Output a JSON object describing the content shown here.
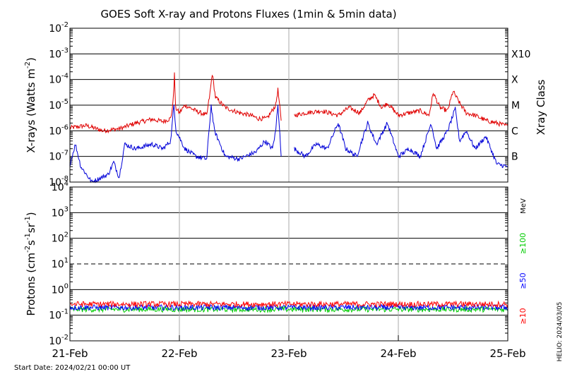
{
  "title": "GOES Soft X-ray and Protons Fluxes   (1min & 5min data)",
  "start_date": "Start Date: 2024/02/21 00:00 UT",
  "side_stamp": "HELIO: 2024/03/05",
  "colors": {
    "xray_long": "#e00000",
    "xray_short": "#0000d8",
    "p10": "#ff0000",
    "p50": "#0000ff",
    "p100": "#00cc00",
    "grid": "#000000",
    "day_line": "#aaaaaa"
  },
  "chart_data": [
    {
      "type": "line",
      "title": "",
      "ylabel_main": "X-rays (Watts m",
      "ylabel_sup": "-2",
      "ylabel_close": ")",
      "yscale": "log",
      "ylim_exp": [
        -8,
        -2
      ],
      "ytick_exps": [
        -8,
        -7,
        -6,
        -5,
        -4,
        -3,
        -2
      ],
      "x_ticks": [
        "21-Feb",
        "22-Feb",
        "23-Feb",
        "24-Feb",
        "25-Feb"
      ],
      "xlim_days": [
        0,
        4
      ],
      "class_axis_label": "Xray Class",
      "class_labels": [
        {
          "label": "B",
          "exp": -7
        },
        {
          "label": "C",
          "exp": -6
        },
        {
          "label": "M",
          "exp": -5
        },
        {
          "label": "X",
          "exp": -4
        },
        {
          "label": "X10",
          "exp": -3
        }
      ],
      "series": [
        {
          "color_key": "xray_long",
          "points": [
            [
              0,
              1.3e-06
            ],
            [
              0.15,
              1.6e-06
            ],
            [
              0.3,
              1e-06
            ],
            [
              0.45,
              1.2e-06
            ],
            [
              0.5,
              1.4e-06
            ],
            [
              0.6,
              2e-06
            ],
            [
              0.75,
              2.8e-06
            ],
            [
              0.85,
              2.3e-06
            ],
            [
              0.92,
              3e-06
            ],
            [
              0.94,
              1e-05
            ],
            [
              0.955,
              0.00016
            ],
            [
              0.965,
              8e-06
            ],
            [
              1.0,
              5e-06
            ],
            [
              1.05,
              1e-05
            ],
            [
              1.15,
              6e-06
            ],
            [
              1.25,
              4e-06
            ],
            [
              1.28,
              3e-05
            ],
            [
              1.3,
              0.00017
            ],
            [
              1.33,
              2e-05
            ],
            [
              1.42,
              8e-06
            ],
            [
              1.55,
              5e-06
            ],
            [
              1.65,
              4e-06
            ],
            [
              1.72,
              3e-06
            ],
            [
              1.8,
              3e-06
            ],
            [
              1.88,
              1e-05
            ],
            [
              1.9,
              4e-05
            ],
            [
              1.93,
              2.5e-06
            ]
          ],
          "gap_after": 1.93,
          "points2": [
            [
              2.05,
              4e-06
            ],
            [
              2.15,
              5e-06
            ],
            [
              2.3,
              6e-06
            ],
            [
              2.45,
              4e-06
            ],
            [
              2.55,
              8e-06
            ],
            [
              2.65,
              5e-06
            ],
            [
              2.72,
              1.5e-05
            ],
            [
              2.78,
              2.5e-05
            ],
            [
              2.85,
              8e-06
            ],
            [
              2.9,
              1.2e-05
            ],
            [
              3.0,
              4e-06
            ],
            [
              3.1,
              5e-06
            ],
            [
              3.2,
              6e-06
            ],
            [
              3.28,
              4e-06
            ],
            [
              3.32,
              3e-05
            ],
            [
              3.38,
              8e-06
            ],
            [
              3.45,
              6e-06
            ],
            [
              3.5,
              3.5e-05
            ],
            [
              3.56,
              1.2e-05
            ],
            [
              3.62,
              5e-06
            ],
            [
              3.7,
              4e-06
            ],
            [
              3.8,
              2.5e-06
            ],
            [
              3.9,
              2e-06
            ],
            [
              4.0,
              1.5e-06
            ]
          ]
        },
        {
          "color_key": "xray_short",
          "points": [
            [
              0,
              5e-08
            ],
            [
              0.05,
              3e-07
            ],
            [
              0.1,
              4e-08
            ],
            [
              0.2,
              1e-08
            ],
            [
              0.35,
              2e-08
            ],
            [
              0.4,
              6e-08
            ],
            [
              0.45,
              1.5e-08
            ],
            [
              0.5,
              3e-07
            ],
            [
              0.6,
              2e-07
            ],
            [
              0.75,
              3e-07
            ],
            [
              0.85,
              2e-07
            ],
            [
              0.92,
              4e-07
            ],
            [
              0.95,
              1e-05
            ],
            [
              0.97,
              1e-06
            ],
            [
              1.05,
              2e-07
            ],
            [
              1.15,
              1e-07
            ],
            [
              1.25,
              8e-08
            ],
            [
              1.29,
              1e-05
            ],
            [
              1.32,
              1e-06
            ],
            [
              1.42,
              1e-07
            ],
            [
              1.55,
              8e-08
            ],
            [
              1.7,
              1.5e-07
            ],
            [
              1.78,
              4e-07
            ],
            [
              1.85,
              2e-07
            ],
            [
              1.88,
              1e-06
            ],
            [
              1.9,
              1.2e-05
            ],
            [
              1.93,
              1e-07
            ]
          ],
          "gap_after": 1.93,
          "points2": [
            [
              2.05,
              2e-07
            ],
            [
              2.15,
              1e-07
            ],
            [
              2.25,
              3e-07
            ],
            [
              2.35,
              2e-07
            ],
            [
              2.45,
              2e-06
            ],
            [
              2.52,
              2e-07
            ],
            [
              2.62,
              1e-07
            ],
            [
              2.72,
              2e-06
            ],
            [
              2.8,
              3e-07
            ],
            [
              2.9,
              2e-06
            ],
            [
              3.0,
              1e-07
            ],
            [
              3.1,
              2e-07
            ],
            [
              3.2,
              1e-07
            ],
            [
              3.3,
              2e-06
            ],
            [
              3.35,
              2e-07
            ],
            [
              3.45,
              1e-06
            ],
            [
              3.52,
              7e-06
            ],
            [
              3.56,
              4e-07
            ],
            [
              3.62,
              1e-06
            ],
            [
              3.7,
              2e-07
            ],
            [
              3.8,
              6e-07
            ],
            [
              3.9,
              5e-08
            ],
            [
              4.0,
              4e-08
            ]
          ]
        }
      ]
    },
    {
      "type": "line",
      "title": "",
      "ylabel_main": "Protons (cm",
      "ylabel_sup1": "-2",
      "ylabel_mid1": "s",
      "ylabel_sup2": "-1",
      "ylabel_mid2": "sr",
      "ylabel_sup3": "-1",
      "ylabel_close": ")",
      "yscale": "log",
      "ylim_exp": [
        -2,
        4
      ],
      "ytick_exps": [
        -2,
        -1,
        0,
        1,
        2,
        3,
        4
      ],
      "dashed_line_exp": 1,
      "x_ticks": [
        "21-Feb",
        "22-Feb",
        "23-Feb",
        "24-Feb",
        "25-Feb"
      ],
      "xlim_days": [
        0,
        4
      ],
      "unit_label": "MeV",
      "series": [
        {
          "name": "≥100",
          "color_key": "p100",
          "level": 0.17
        },
        {
          "name": "≥50",
          "color_key": "p50",
          "level": 0.2
        },
        {
          "name": "≥10",
          "color_key": "p10",
          "level": 0.27
        }
      ]
    }
  ]
}
